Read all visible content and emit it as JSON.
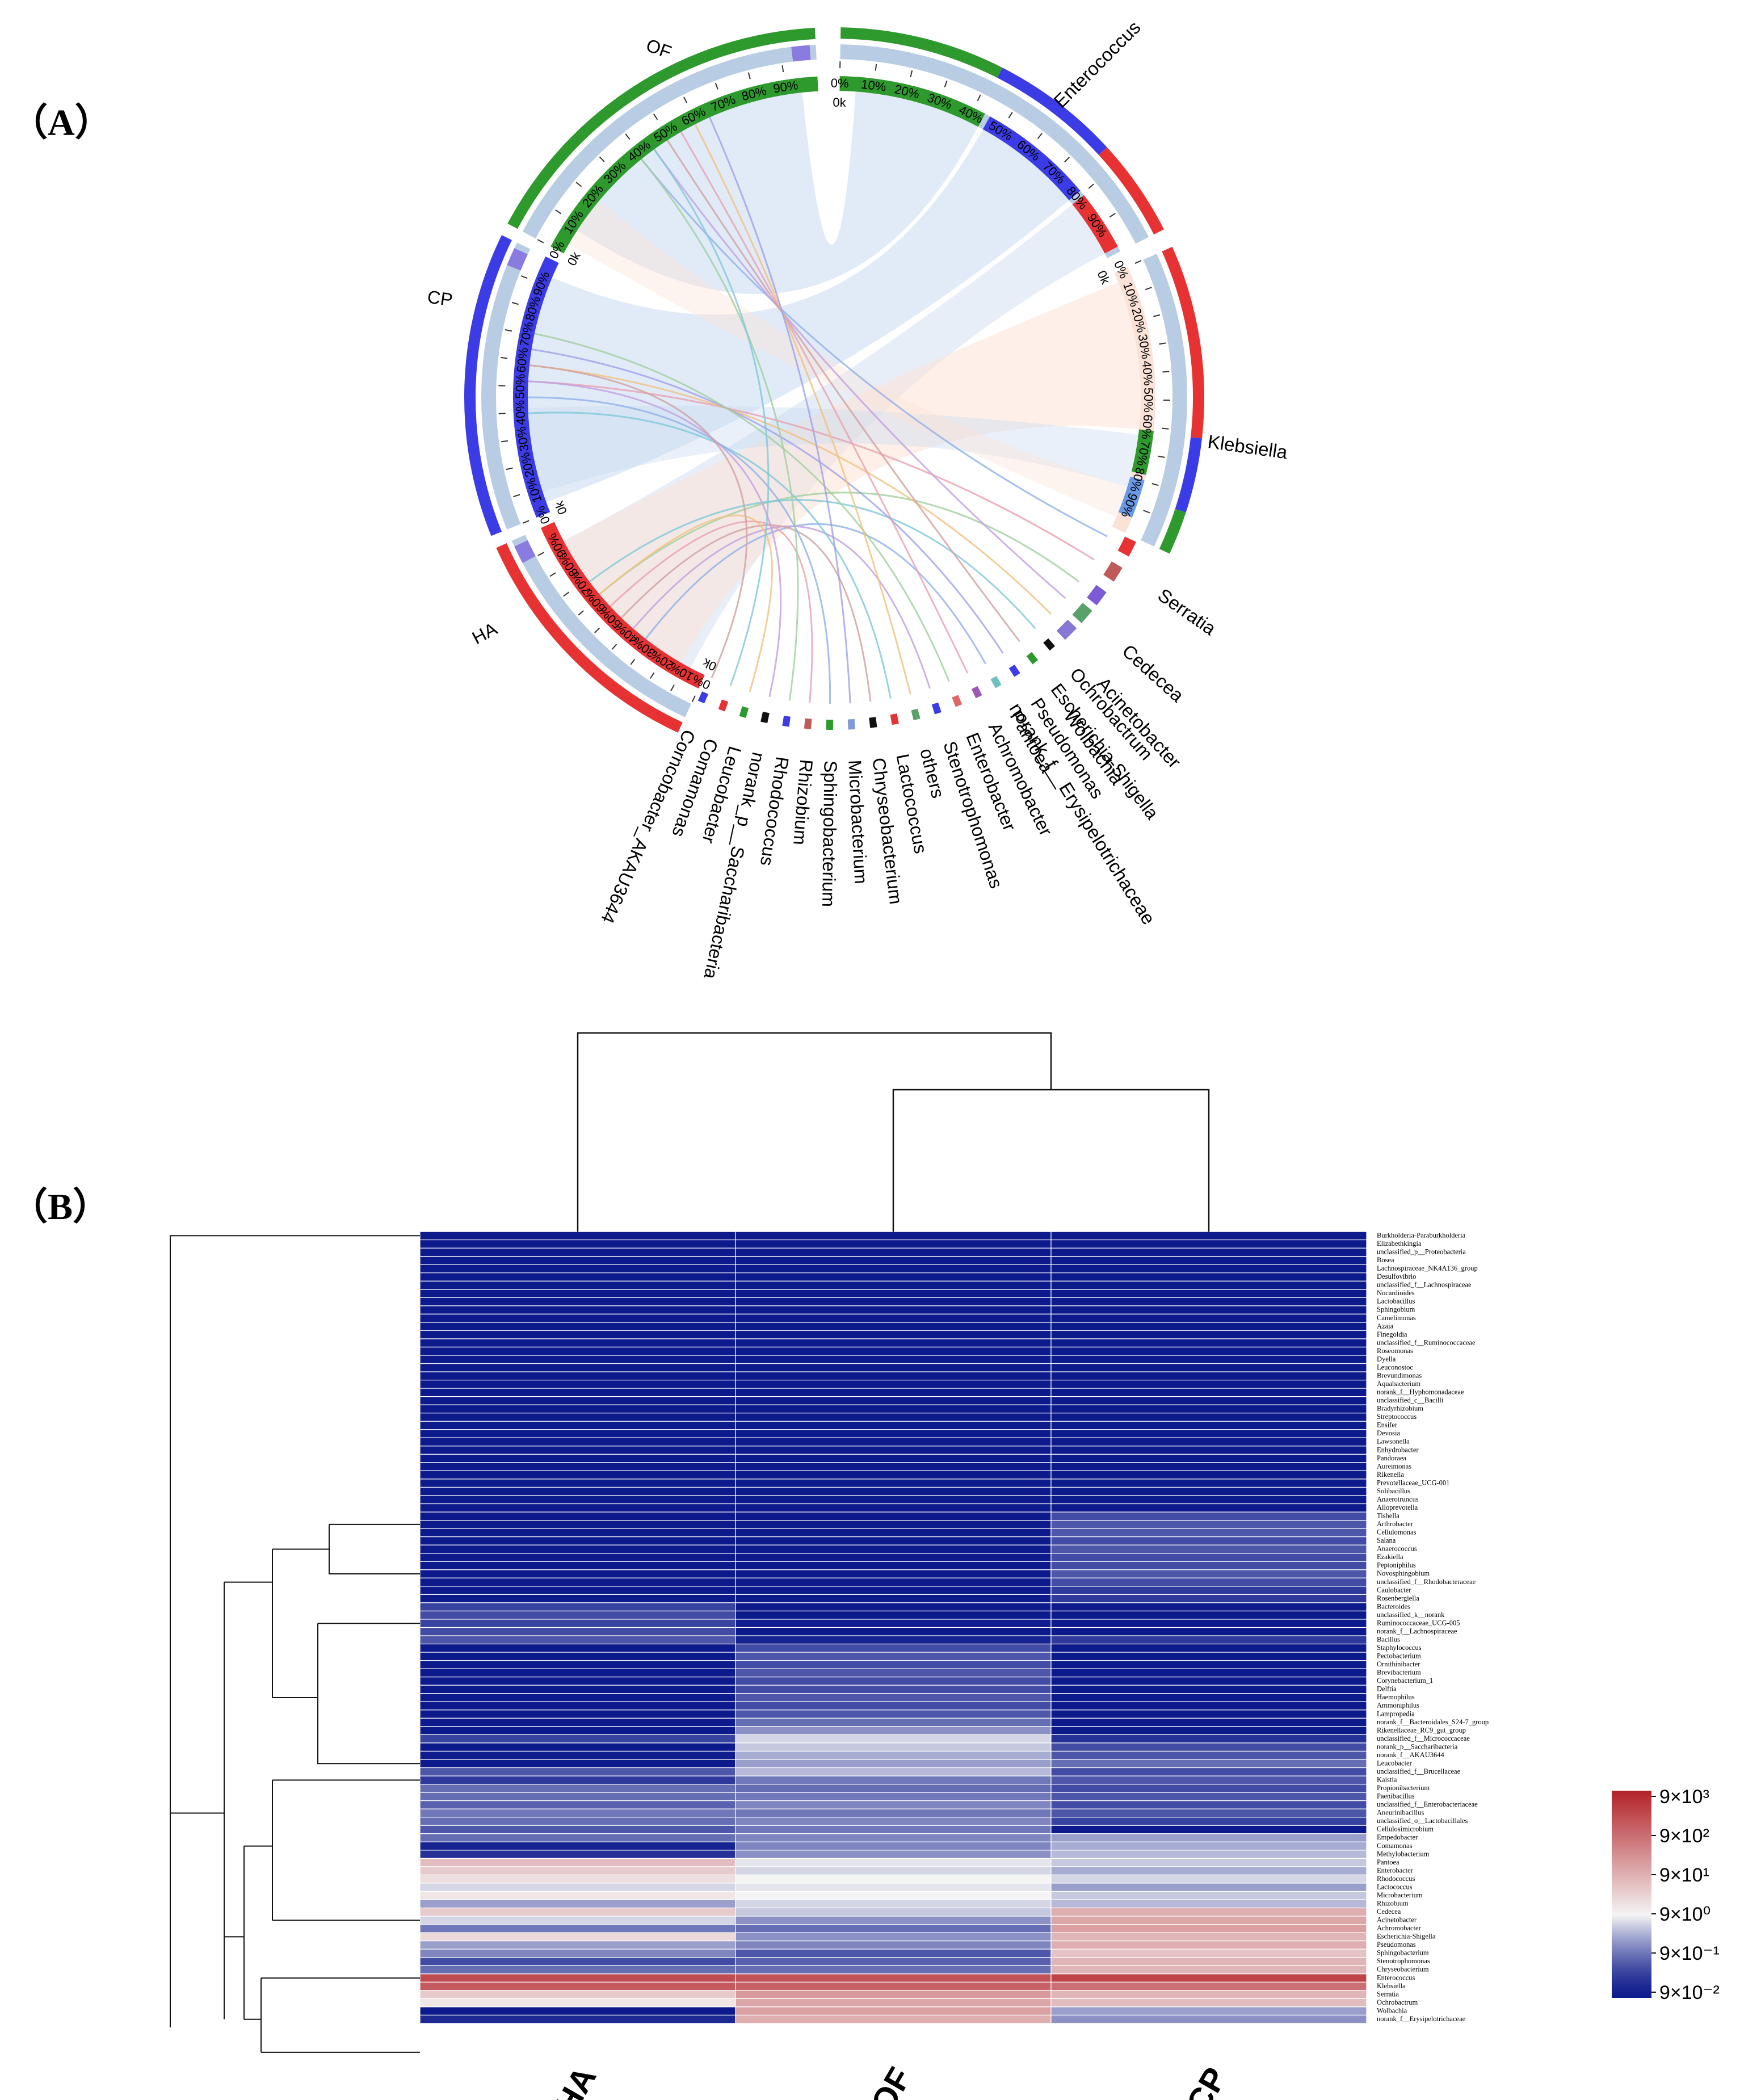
{
  "panel_a": {
    "label": "（A）"
  },
  "panel_b": {
    "label": "（B）"
  },
  "colors": {
    "HA": "#e63232",
    "CP": "#3c3ce6",
    "OF": "#2e9a2e",
    "ring": "#b8cde4",
    "blue": "#0d1a8c",
    "white": "#f4f4f4",
    "red": "#b22228"
  },
  "chart_data": [
    {
      "type": "chord",
      "title": "",
      "samples": [
        "OF",
        "CP",
        "HA"
      ],
      "genera_major": [
        "Enterococcus",
        "Klebsiella",
        "Serratia",
        "Cedecea",
        "Acinetobacter",
        "Wolbachia",
        "norank_f__Erysipelotrichaceae"
      ],
      "genera_minor": [
        "Ochrobactrum",
        "Escherichia-Shigella",
        "Pseudomonas",
        "Pantoea",
        "Achromobacter",
        "Enterobacter",
        "Stenotrophomonas",
        "others",
        "Lactococcus",
        "Chryseobacterium",
        "Microbacterium",
        "Sphingobacterium",
        "Rhizobium",
        "Rhodococcus",
        "norank_p__Saccharibacteria",
        "Leucobacter",
        "Comamonas",
        "Corncobacter_AKAU3644"
      ],
      "percent_ticks": [
        "0%",
        "10%",
        "20%",
        "30%",
        "40%",
        "50%",
        "60%",
        "70%",
        "80%",
        "90%"
      ],
      "zero_tick": "0k",
      "composition": {
        "Enterococcus": [
          {
            "sample": "OF",
            "percent": 42
          },
          {
            "sample": "CP",
            "percent": 33
          },
          {
            "sample": "HA",
            "percent": 25
          }
        ],
        "Klebsiella": [
          {
            "sample": "HA",
            "percent": 62
          },
          {
            "sample": "CP",
            "percent": 24
          },
          {
            "sample": "OF",
            "percent": 14
          }
        ]
      }
    },
    {
      "type": "heatmap",
      "columns": [
        "HA",
        "OF",
        "CP"
      ],
      "rows": [
        "Burkholderia-Paraburkholderia",
        "Elizabethkingia",
        "unclassified_p__Proteobacteria",
        "Bosea",
        "Lachnospiraceae_NK4A136_group",
        "Desulfovibrio",
        "unclassified_f__Lachnospiraceae",
        "Nocardioides",
        "Lactobacillus",
        "Sphingobium",
        "Camelimonas",
        "Azaia",
        "Finegoldia",
        "unclassified_f__Ruminococcaceae",
        "Roseomonas",
        "Dyella",
        "Leuconostoc",
        "Brevundimonas",
        "Aquabacterium",
        "norank_f__Hyphomonadaceae",
        "unclassified_c__Bacilli",
        "Bradyrhizobium",
        "Streptococcus",
        "Ensifer",
        "Devosia",
        "Lawsonella",
        "Enhydrobacter",
        "Pandoraea",
        "Aureimonas",
        "Rikenella",
        "Prevotellaceae_UCG-001",
        "Solibacillus",
        "Anaerotruncus",
        "Alloprevotella",
        "Tishella",
        "Arthrobacter",
        "Cellulomonas",
        "Salana",
        "Anaerococcus",
        "Ezakiella",
        "Peptoniphilus",
        "Novosphingobium",
        "unclassified_f__Rhodobacteraceae",
        "Caulobacter",
        "Rosenbergiella",
        "Bacteroides",
        "unclassified_k__norank",
        "Ruminococcaceae_UCG-005",
        "norank_f__Lachnospiraceae",
        "Bacillus",
        "Staphylococcus",
        "Pectobacterium",
        "Ornithinibacter",
        "Brevibacterium",
        "Corynebacterium_1",
        "Delftia",
        "Haemophilus",
        "Ammoniphilus",
        "Lampropedia",
        "norank_f__Bacteroidales_S24-7_group",
        "Rikenellaceae_RC9_gut_group",
        "unclassified_f__Micrococcaceae",
        "norank_p__Saccharibacteria",
        "norank_f__AKAU3644",
        "Leucobacter",
        "unclassified_f__Brucellaceae",
        "Kaistia",
        "Propionibacterium",
        "Paenibacillus",
        "unclassified_f__Enterobacteriaceae",
        "Aneurinibacillus",
        "unclassified_o__Lactobacillales",
        "Cellulosimicrobium",
        "Empedobacter",
        "Comamonas",
        "Methylobacterium",
        "Pantoea",
        "Enterobacter",
        "Rhodococcus",
        "Lactococcus",
        "Microbacterium",
        "Rhizobium",
        "Cedecea",
        "Acinetobacter",
        "Achromobacter",
        "Escherichia-Shigella",
        "Pseudomonas",
        "Sphingobacterium",
        "Stenotrophomonas",
        "Chryseobacterium",
        "Enterococcus",
        "Klebsiella",
        "Serratia",
        "Ochrobactrum",
        "Wolbachia",
        "norank_f__Erysipelotrichaceae"
      ],
      "values_log10_ratio_to_9": [
        [
          -2,
          -2,
          -2
        ],
        [
          -2,
          -2,
          -2
        ],
        [
          -2,
          -2,
          -2
        ],
        [
          -2,
          -2,
          -2
        ],
        [
          -2,
          -2,
          -2
        ],
        [
          -2,
          -2,
          -2
        ],
        [
          -2,
          -2,
          -2
        ],
        [
          -2,
          -2,
          -2
        ],
        [
          -2,
          -2,
          -2
        ],
        [
          -2,
          -2,
          -2
        ],
        [
          -2,
          -2,
          -2
        ],
        [
          -2,
          -2,
          -2
        ],
        [
          -2,
          -2,
          -2
        ],
        [
          -2,
          -2,
          -2
        ],
        [
          -2,
          -2,
          -2
        ],
        [
          -2,
          -2,
          -2
        ],
        [
          -2,
          -2,
          -2
        ],
        [
          -2,
          -2,
          -2
        ],
        [
          -2,
          -2,
          -2
        ],
        [
          -2,
          -2,
          -2
        ],
        [
          -2,
          -2,
          -2
        ],
        [
          -2,
          -2,
          -2
        ],
        [
          -2,
          -2,
          -2
        ],
        [
          -2,
          -2,
          -2
        ],
        [
          -2,
          -2,
          -2
        ],
        [
          -2,
          -2,
          -2
        ],
        [
          -2,
          -2,
          -2
        ],
        [
          -2,
          -2,
          -2
        ],
        [
          -2,
          -2,
          -2
        ],
        [
          -2,
          -2,
          -2
        ],
        [
          -2,
          -2,
          -2
        ],
        [
          -2,
          -2,
          -2
        ],
        [
          -2,
          -2,
          -2
        ],
        [
          -2,
          -2,
          -2
        ],
        [
          -2,
          -2,
          -1.3
        ],
        [
          -2,
          -2,
          -1.2
        ],
        [
          -2,
          -2,
          -1.2
        ],
        [
          -2,
          -2,
          -1.3
        ],
        [
          -2,
          -2,
          -1.2
        ],
        [
          -2,
          -2,
          -1.3
        ],
        [
          -2,
          -2,
          -1.3
        ],
        [
          -2,
          -2,
          -1.2
        ],
        [
          -2,
          -2,
          -1.3
        ],
        [
          -2,
          -2,
          -1.5
        ],
        [
          -2,
          -2,
          -1.5
        ],
        [
          -1.4,
          -2,
          -2
        ],
        [
          -1.3,
          -2,
          -2
        ],
        [
          -1.4,
          -1.9,
          -2
        ],
        [
          -1.3,
          -2,
          -2
        ],
        [
          -1.2,
          -1.8,
          -1.5
        ],
        [
          -2,
          -1.3,
          -2
        ],
        [
          -2,
          -1.2,
          -2
        ],
        [
          -2,
          -1.3,
          -2
        ],
        [
          -2,
          -1.2,
          -2
        ],
        [
          -2,
          -1.3,
          -2
        ],
        [
          -2,
          -1.3,
          -2
        ],
        [
          -2,
          -1.2,
          -2
        ],
        [
          -2,
          -1.3,
          -2
        ],
        [
          -2,
          -1.2,
          -2
        ],
        [
          -2,
          -1.0,
          -2
        ],
        [
          -2,
          -0.7,
          -2
        ],
        [
          -1.4,
          -0.2,
          -1.6
        ],
        [
          -2,
          -0.3,
          -1.3
        ],
        [
          -1.9,
          -0.5,
          -1.2
        ],
        [
          -2,
          -0.6,
          -1.0
        ],
        [
          -1.2,
          -0.4,
          -1.3
        ],
        [
          -1.5,
          -0.9,
          -1.2
        ],
        [
          -1.0,
          -1.0,
          -1.3
        ],
        [
          -1.0,
          -0.9,
          -1.2
        ],
        [
          -1.1,
          -0.8,
          -1.3
        ],
        [
          -0.9,
          -0.9,
          -1.2
        ],
        [
          -1.0,
          -0.8,
          -1.4
        ],
        [
          -1.2,
          -0.9,
          -2
        ],
        [
          -1.0,
          -0.8,
          -0.6
        ],
        [
          -1.8,
          -0.8,
          -0.5
        ],
        [
          -1.6,
          -0.7,
          -0.4
        ],
        [
          0.8,
          -0.1,
          -0.3
        ],
        [
          0.6,
          -0.2,
          -0.5
        ],
        [
          0.3,
          0,
          -0.2
        ],
        [
          -0.2,
          -0.1,
          -0.6
        ],
        [
          0.2,
          0,
          -0.3
        ],
        [
          -0.6,
          -0.2,
          -0.4
        ],
        [
          0.6,
          -0.3,
          1.0
        ],
        [
          -0.2,
          -0.7,
          1.1
        ],
        [
          -0.9,
          -1.0,
          1.2
        ],
        [
          0.4,
          -0.7,
          0.9
        ],
        [
          -0.6,
          -0.8,
          1.0
        ],
        [
          -0.8,
          -1.2,
          0.7
        ],
        [
          -1.3,
          -1.1,
          0.9
        ],
        [
          -1.0,
          -1.0,
          0.9
        ],
        [
          2.4,
          2.3,
          2.5
        ],
        [
          2.2,
          2.1,
          1.9
        ],
        [
          0.6,
          1.3,
          0.9
        ],
        [
          0.2,
          1.1,
          0.8
        ],
        [
          -2,
          1.2,
          -0.6
        ],
        [
          -1.7,
          1.0,
          -0.7
        ]
      ],
      "colorbar_labels": [
        "9×10³",
        "9×10²",
        "9×10¹",
        "9×10⁰",
        "9×10⁻¹",
        "9×10⁻²"
      ],
      "colorbar_range": [
        -2,
        3
      ]
    }
  ]
}
